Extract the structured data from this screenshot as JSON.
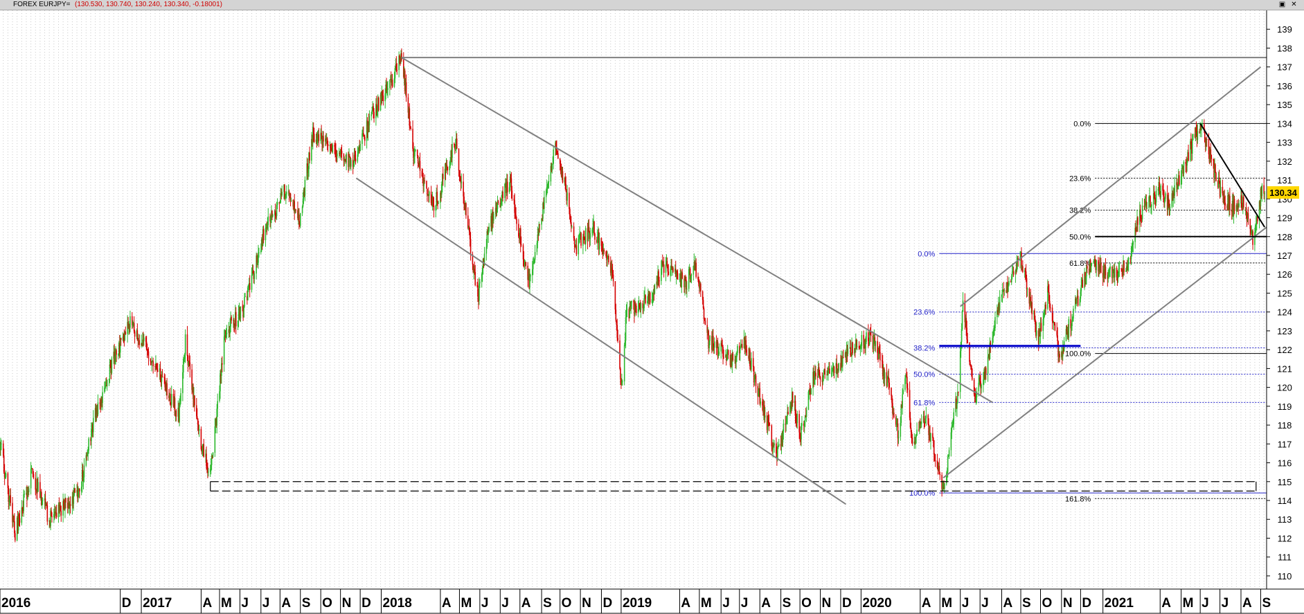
{
  "window": {
    "title": "FOREX EURJPY=",
    "quote": "(130.530, 130.740, 130.240, 130.340, -0.18001)",
    "restore_icon": "restore-icon",
    "close_icon": "close-icon"
  },
  "colors": {
    "up": "#2db82d",
    "down": "#d40000",
    "trend": "#808080",
    "fib_black": "#000000",
    "fib_blue": "#2020c8",
    "last_badge": "#ffd700"
  },
  "chart_data": {
    "type": "candlestick",
    "instrument": "EURJPY",
    "x_range": [
      "2016-06-01",
      "2021-09-10"
    ],
    "ylim": [
      109.3,
      140.0
    ],
    "y_ticks": [
      110,
      111,
      112,
      113,
      114,
      115,
      116,
      117,
      118,
      119,
      120,
      121,
      122,
      123,
      124,
      125,
      126,
      127,
      128,
      129,
      130,
      131,
      132,
      133,
      134,
      135,
      136,
      137,
      138,
      139
    ],
    "x_ticks": [
      {
        "label": "2016",
        "date": "2016-06-01"
      },
      {
        "label": "D",
        "date": "2016-12-01"
      },
      {
        "label": "2017",
        "date": "2017-01-02"
      },
      {
        "label": "A",
        "date": "2017-04-03"
      },
      {
        "label": "M",
        "date": "2017-05-01"
      },
      {
        "label": "J",
        "date": "2017-06-01"
      },
      {
        "label": "J",
        "date": "2017-07-03"
      },
      {
        "label": "A",
        "date": "2017-08-01"
      },
      {
        "label": "S",
        "date": "2017-09-01"
      },
      {
        "label": "O",
        "date": "2017-10-02"
      },
      {
        "label": "N",
        "date": "2017-11-01"
      },
      {
        "label": "D",
        "date": "2017-12-01"
      },
      {
        "label": "2018",
        "date": "2018-01-02"
      },
      {
        "label": "A",
        "date": "2018-04-02"
      },
      {
        "label": "M",
        "date": "2018-05-01"
      },
      {
        "label": "J",
        "date": "2018-06-01"
      },
      {
        "label": "J",
        "date": "2018-07-02"
      },
      {
        "label": "A",
        "date": "2018-08-01"
      },
      {
        "label": "S",
        "date": "2018-09-03"
      },
      {
        "label": "O",
        "date": "2018-10-01"
      },
      {
        "label": "N",
        "date": "2018-11-01"
      },
      {
        "label": "D",
        "date": "2018-12-03"
      },
      {
        "label": "2019",
        "date": "2019-01-02"
      },
      {
        "label": "A",
        "date": "2019-04-01"
      },
      {
        "label": "M",
        "date": "2019-05-01"
      },
      {
        "label": "J",
        "date": "2019-06-03"
      },
      {
        "label": "J",
        "date": "2019-07-01"
      },
      {
        "label": "A",
        "date": "2019-08-01"
      },
      {
        "label": "S",
        "date": "2019-09-02"
      },
      {
        "label": "O",
        "date": "2019-10-01"
      },
      {
        "label": "N",
        "date": "2019-11-01"
      },
      {
        "label": "D",
        "date": "2019-12-02"
      },
      {
        "label": "2020",
        "date": "2020-01-02"
      },
      {
        "label": "A",
        "date": "2020-04-01"
      },
      {
        "label": "M",
        "date": "2020-05-01"
      },
      {
        "label": "J",
        "date": "2020-06-01"
      },
      {
        "label": "J",
        "date": "2020-07-01"
      },
      {
        "label": "A",
        "date": "2020-08-03"
      },
      {
        "label": "S",
        "date": "2020-09-01"
      },
      {
        "label": "O",
        "date": "2020-10-01"
      },
      {
        "label": "N",
        "date": "2020-11-02"
      },
      {
        "label": "D",
        "date": "2020-12-01"
      },
      {
        "label": "2021",
        "date": "2021-01-04"
      },
      {
        "label": "A",
        "date": "2021-04-01"
      },
      {
        "label": "M",
        "date": "2021-05-03"
      },
      {
        "label": "J",
        "date": "2021-06-01"
      },
      {
        "label": "J",
        "date": "2021-07-01"
      },
      {
        "label": "A",
        "date": "2021-08-02"
      },
      {
        "label": "S",
        "date": "2021-09-01"
      }
    ],
    "price_path": [
      [
        "2016-06-01",
        117.0
      ],
      [
        "2016-06-24",
        112.3
      ],
      [
        "2016-07-20",
        115.5
      ],
      [
        "2016-08-15",
        113.0
      ],
      [
        "2016-09-30",
        114.5
      ],
      [
        "2016-10-20",
        118.0
      ],
      [
        "2016-11-15",
        121.0
      ],
      [
        "2016-12-15",
        123.5
      ],
      [
        "2017-01-20",
        121.5
      ],
      [
        "2017-02-15",
        119.5
      ],
      [
        "2017-02-28",
        118.5
      ],
      [
        "2017-03-10",
        122.5
      ],
      [
        "2017-03-31",
        117.5
      ],
      [
        "2017-04-17",
        115.3
      ],
      [
        "2017-05-10",
        123.0
      ],
      [
        "2017-06-05",
        124.0
      ],
      [
        "2017-07-10",
        128.5
      ],
      [
        "2017-08-10",
        130.5
      ],
      [
        "2017-08-31",
        129.0
      ],
      [
        "2017-09-20",
        133.5
      ],
      [
        "2017-10-20",
        132.5
      ],
      [
        "2017-11-20",
        132.0
      ],
      [
        "2017-12-20",
        134.5
      ],
      [
        "2018-01-15",
        136.0
      ],
      [
        "2018-02-02",
        137.5
      ],
      [
        "2018-02-20",
        132.5
      ],
      [
        "2018-03-23",
        129.5
      ],
      [
        "2018-04-25",
        133.0
      ],
      [
        "2018-05-29",
        124.8
      ],
      [
        "2018-06-15",
        128.5
      ],
      [
        "2018-07-17",
        131.0
      ],
      [
        "2018-08-14",
        125.5
      ],
      [
        "2018-09-25",
        133.0
      ],
      [
        "2018-10-26",
        127.5
      ],
      [
        "2018-11-20",
        128.5
      ],
      [
        "2018-12-20",
        126.0
      ],
      [
        "2019-01-03",
        120.0
      ],
      [
        "2019-01-10",
        124.0
      ],
      [
        "2019-02-20",
        125.0
      ],
      [
        "2019-03-05",
        126.5
      ],
      [
        "2019-04-10",
        125.5
      ],
      [
        "2019-04-25",
        126.5
      ],
      [
        "2019-05-15",
        122.5
      ],
      [
        "2019-06-20",
        121.5
      ],
      [
        "2019-07-10",
        122.3
      ],
      [
        "2019-08-01",
        119.5
      ],
      [
        "2019-08-26",
        116.4
      ],
      [
        "2019-09-20",
        119.5
      ],
      [
        "2019-10-01",
        117.5
      ],
      [
        "2019-10-25",
        121.0
      ],
      [
        "2019-11-10",
        120.5
      ],
      [
        "2019-11-30",
        121.2
      ],
      [
        "2019-12-20",
        122.0
      ],
      [
        "2020-01-17",
        122.7
      ],
      [
        "2020-02-10",
        120.5
      ],
      [
        "2020-02-28",
        117.5
      ],
      [
        "2020-03-10",
        121.0
      ],
      [
        "2020-03-20",
        117.0
      ],
      [
        "2020-04-10",
        118.5
      ],
      [
        "2020-05-06",
        114.5
      ],
      [
        "2020-05-29",
        120.0
      ],
      [
        "2020-06-05",
        124.5
      ],
      [
        "2020-06-15",
        121.5
      ],
      [
        "2020-06-22",
        119.5
      ],
      [
        "2020-07-10",
        121.0
      ],
      [
        "2020-07-31",
        124.5
      ],
      [
        "2020-08-31",
        127.0
      ],
      [
        "2020-09-28",
        122.5
      ],
      [
        "2020-10-12",
        125.0
      ],
      [
        "2020-10-30",
        121.6
      ],
      [
        "2020-11-20",
        124.0
      ],
      [
        "2020-12-15",
        126.5
      ],
      [
        "2021-01-15",
        126.0
      ],
      [
        "2021-02-10",
        126.5
      ],
      [
        "2021-02-28",
        129.0
      ],
      [
        "2021-03-31",
        130.5
      ],
      [
        "2021-04-15",
        129.5
      ],
      [
        "2021-05-10",
        132.0
      ],
      [
        "2021-06-01",
        134.0
      ],
      [
        "2021-06-18",
        132.0
      ],
      [
        "2021-07-01",
        130.5
      ],
      [
        "2021-07-20",
        129.5
      ],
      [
        "2021-08-05",
        130.0
      ],
      [
        "2021-08-20",
        128.0
      ],
      [
        "2021-09-03",
        130.5
      ],
      [
        "2021-09-07",
        130.34
      ]
    ],
    "last_price": "130.34",
    "trendlines": [
      {
        "from": [
          "2018-02-02",
          137.5
        ],
        "to": [
          "2021-09-10",
          137.5
        ],
        "color": "#808080",
        "width": 2
      },
      {
        "from": [
          "2018-02-02",
          137.5
        ],
        "to": [
          "2020-07-20",
          119.2
        ],
        "color": "#808080",
        "width": 2
      },
      {
        "from": [
          "2017-11-25",
          131.1
        ],
        "to": [
          "2019-12-10",
          113.8
        ],
        "color": "#808080",
        "width": 2
      },
      {
        "from": [
          "2020-05-06",
          115.2
        ],
        "to": [
          "2021-09-10",
          128.5
        ],
        "color": "#808080",
        "width": 2
      },
      {
        "from": [
          "2020-06-01",
          124.3
        ],
        "to": [
          "2021-09-01",
          137.0
        ],
        "color": "#808080",
        "width": 2
      },
      {
        "from": [
          "2021-06-01",
          134.0
        ],
        "to": [
          "2021-09-07",
          128.5
        ],
        "color": "#000000",
        "width": 2
      }
    ],
    "support_box": {
      "from": "2017-04-17",
      "to": "2021-08-25",
      "top": 115.0,
      "bottom": 114.5
    },
    "fib_black": {
      "from": "2020-12-23",
      "to": "2021-09-10",
      "color": "#000000",
      "levels": [
        {
          "label": "0.0%",
          "price": 134.0
        },
        {
          "label": "23.6%",
          "price": 131.1
        },
        {
          "label": "38.2%",
          "price": 129.4
        },
        {
          "label": "50.0%",
          "price": 128.0
        },
        {
          "label": "61.8%",
          "price": 126.6
        },
        {
          "label": "100.0%",
          "price": 121.8
        },
        {
          "label": "161.8%",
          "price": 114.1
        }
      ]
    },
    "fib_blue": {
      "from": "2020-04-30",
      "to": "2021-09-10",
      "color": "#2020c8",
      "levels": [
        {
          "label": "0.0%",
          "price": 127.1
        },
        {
          "label": "23.6%",
          "price": 124.0
        },
        {
          "label": "38.2%",
          "price": 122.1
        },
        {
          "label": "50.0%",
          "price": 120.7
        },
        {
          "label": "61.8%",
          "price": 119.2
        },
        {
          "label": "100.0%",
          "price": 114.4
        }
      ]
    },
    "highlight_lines": [
      {
        "from": "2020-04-30",
        "to": "2020-12-01",
        "price": 122.2,
        "color": "#0000c8",
        "width": 3
      },
      {
        "from": "2020-12-23",
        "to": "2021-09-10",
        "price": 128.0,
        "color": "#000000",
        "width": 2
      }
    ]
  }
}
